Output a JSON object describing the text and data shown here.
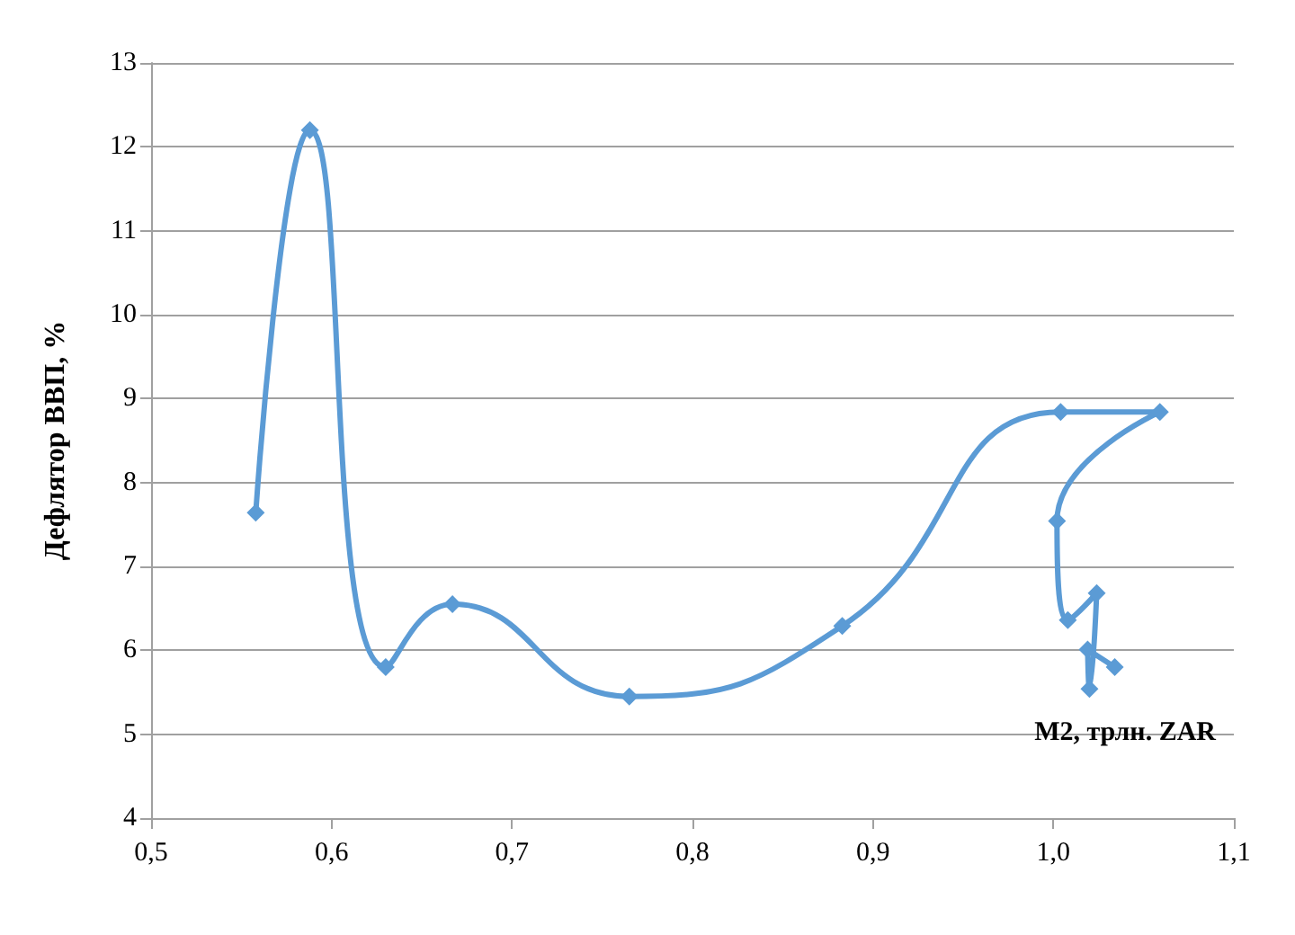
{
  "chart_data": {
    "type": "line",
    "xlabel": "M2, трлн. ZAR",
    "ylabel": "Дефлятор ВВП, %",
    "series": [
      {
        "color": "#5b9bd5",
        "x": [
          0.558,
          0.588,
          0.63,
          0.667,
          0.765,
          0.883,
          1.004,
          1.059,
          1.002,
          1.008,
          1.024,
          1.02,
          1.019,
          1.034
        ],
        "values": [
          7.64,
          12.2,
          5.8,
          6.55,
          5.45,
          6.29,
          8.84,
          8.84,
          7.54,
          6.36,
          6.68,
          5.54,
          6.01,
          5.8
        ]
      }
    ],
    "xlim": [
      0.5,
      1.1
    ],
    "xticks": [
      {
        "value": 0.5,
        "label": "0,5"
      },
      {
        "value": 0.6,
        "label": "0,6"
      },
      {
        "value": 0.7,
        "label": "0,7"
      },
      {
        "value": 0.8,
        "label": "0,8"
      },
      {
        "value": 0.9,
        "label": "0,9"
      },
      {
        "value": 1.0,
        "label": "1,0"
      },
      {
        "value": 1.1,
        "label": "1,1"
      }
    ],
    "ylim": [
      4,
      13
    ],
    "yticks": [
      4,
      5,
      6,
      7,
      8,
      9,
      10,
      11,
      12,
      13
    ],
    "grid": "y",
    "marker": "diamond",
    "line_style": "solid"
  }
}
